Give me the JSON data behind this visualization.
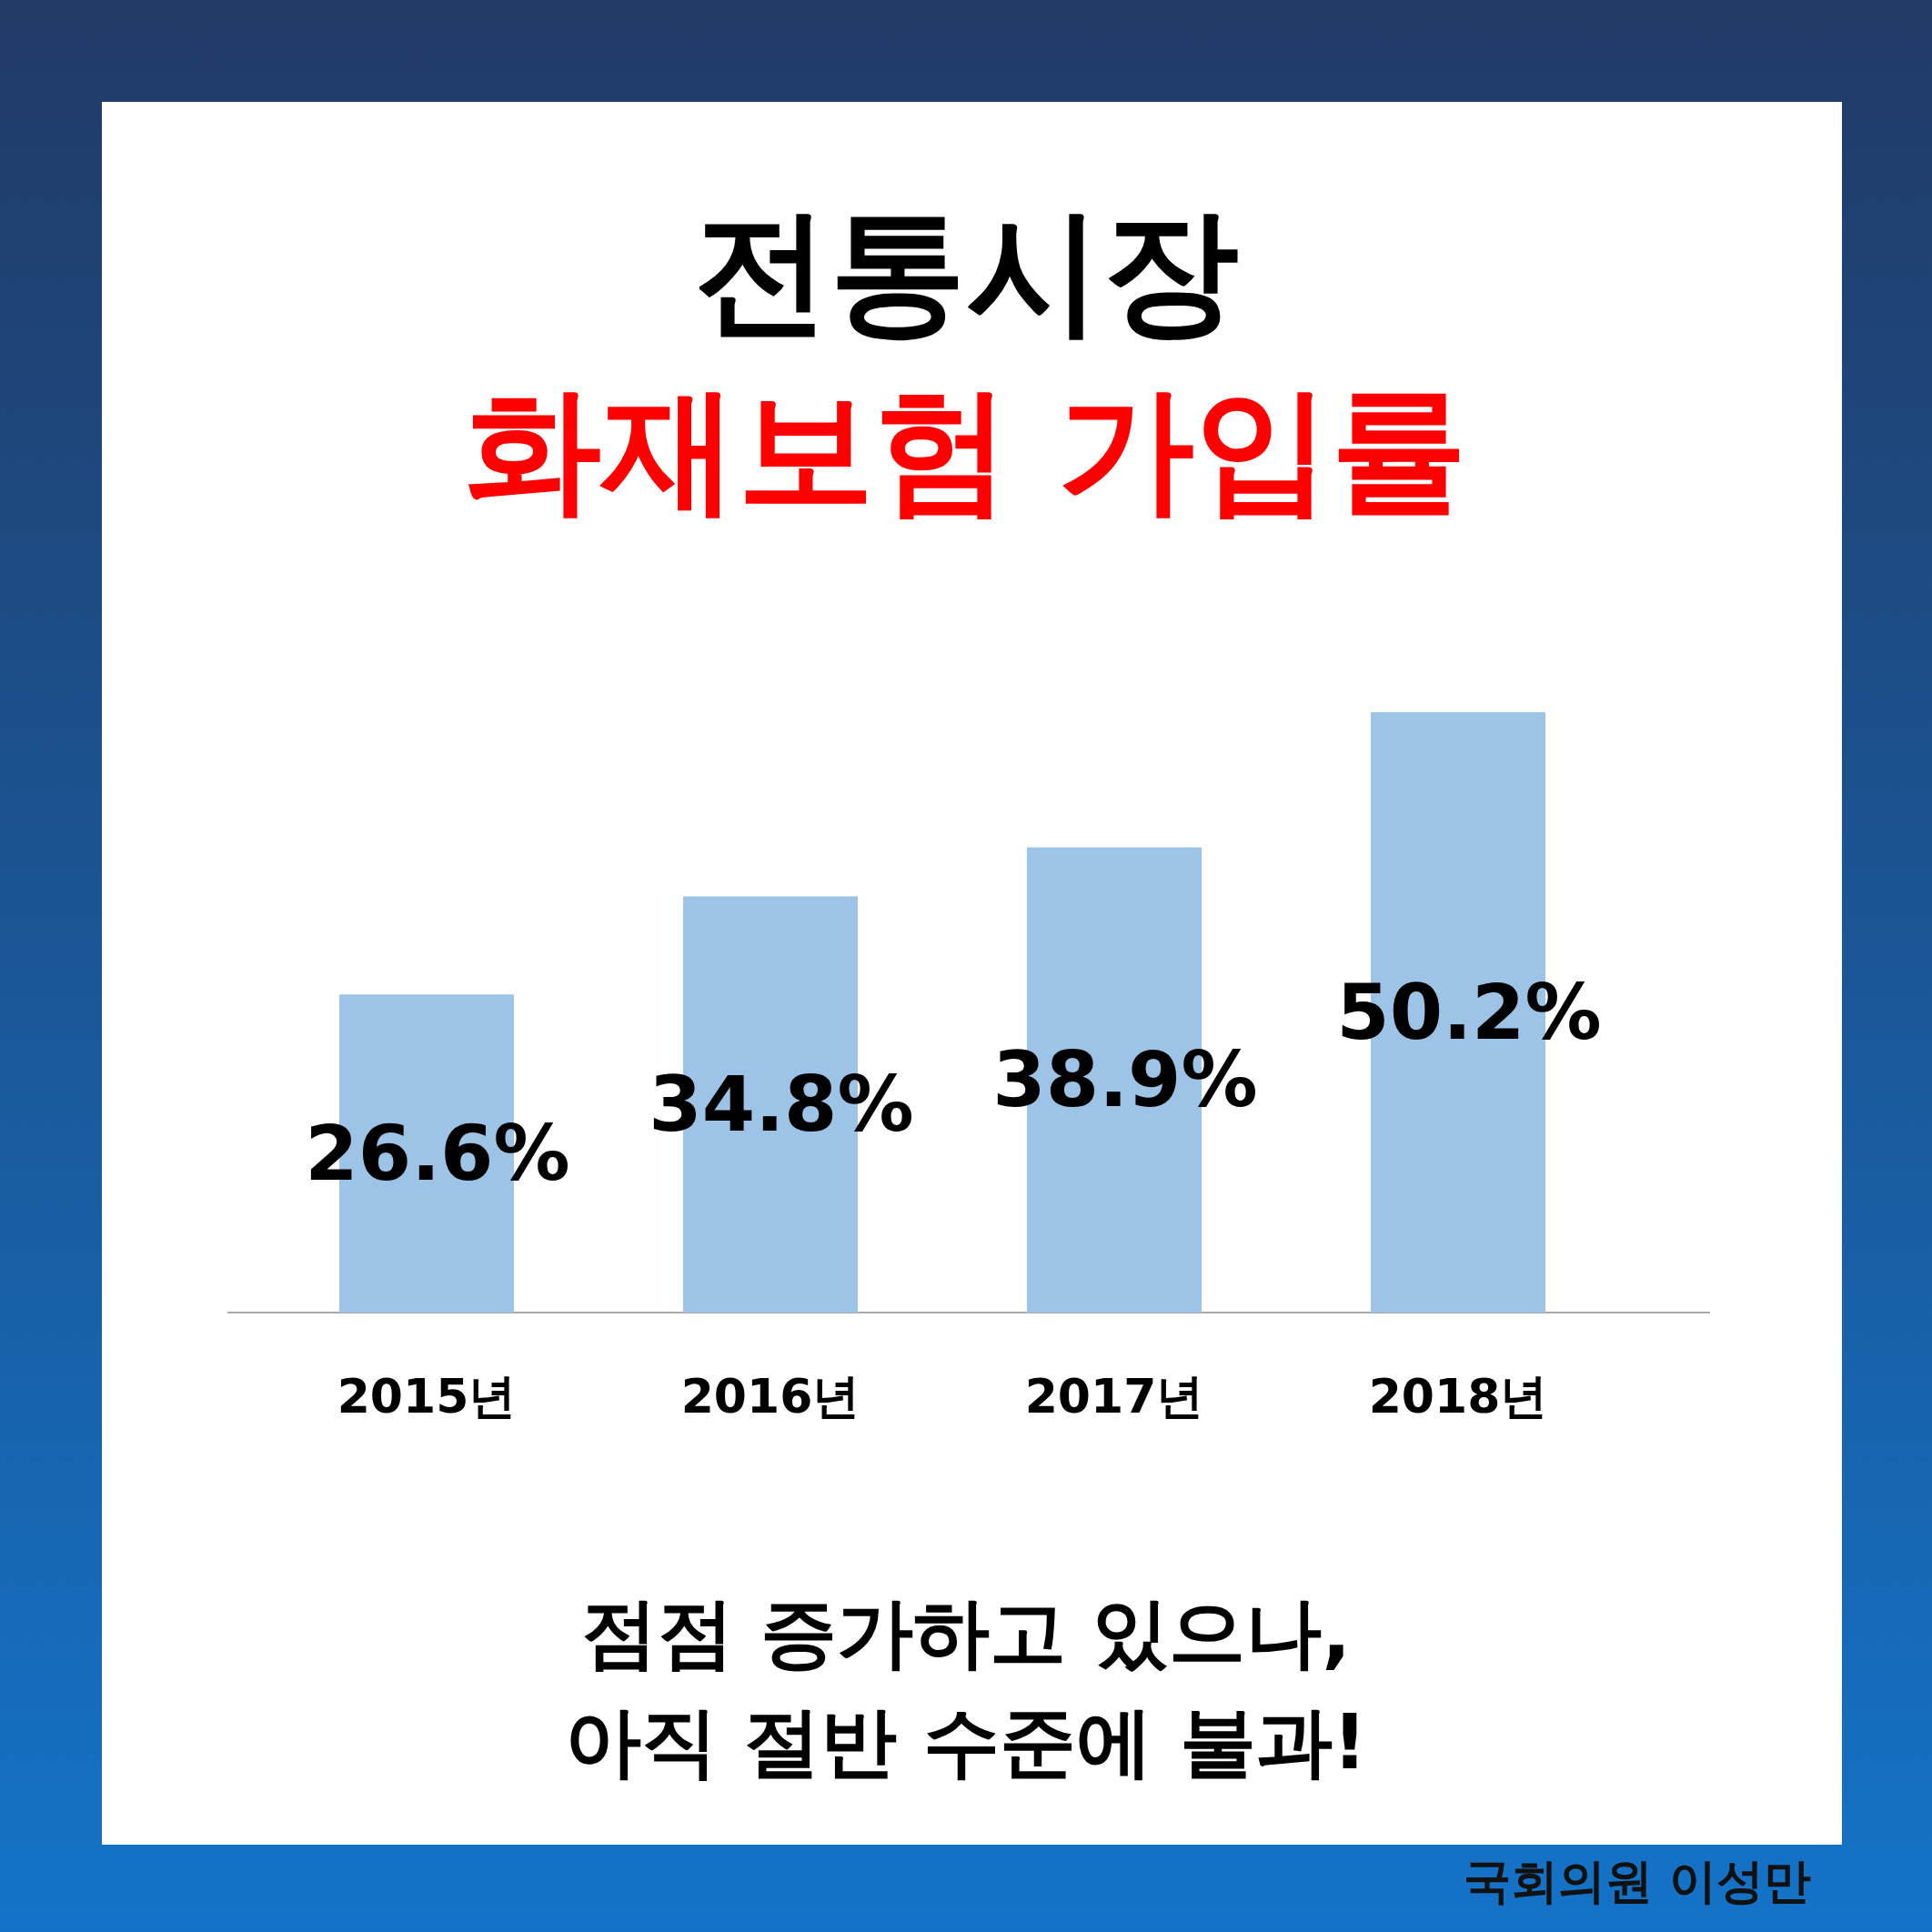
{
  "chart_data": {
    "type": "bar",
    "title": "전통시장",
    "subtitle": "화재보험 가입률",
    "categories": [
      "2015년",
      "2016년",
      "2017년",
      "2018년"
    ],
    "values": [
      26.6,
      34.8,
      38.9,
      50.2
    ],
    "value_labels": [
      "26.6%",
      "34.8%",
      "38.9%",
      "50.2%"
    ],
    "color": "#9dc3e6",
    "annotations": [
      "점점 증가하고 있으나,",
      "아직 절반 수준에 불과!",
      "국회의원 이성만"
    ]
  }
}
